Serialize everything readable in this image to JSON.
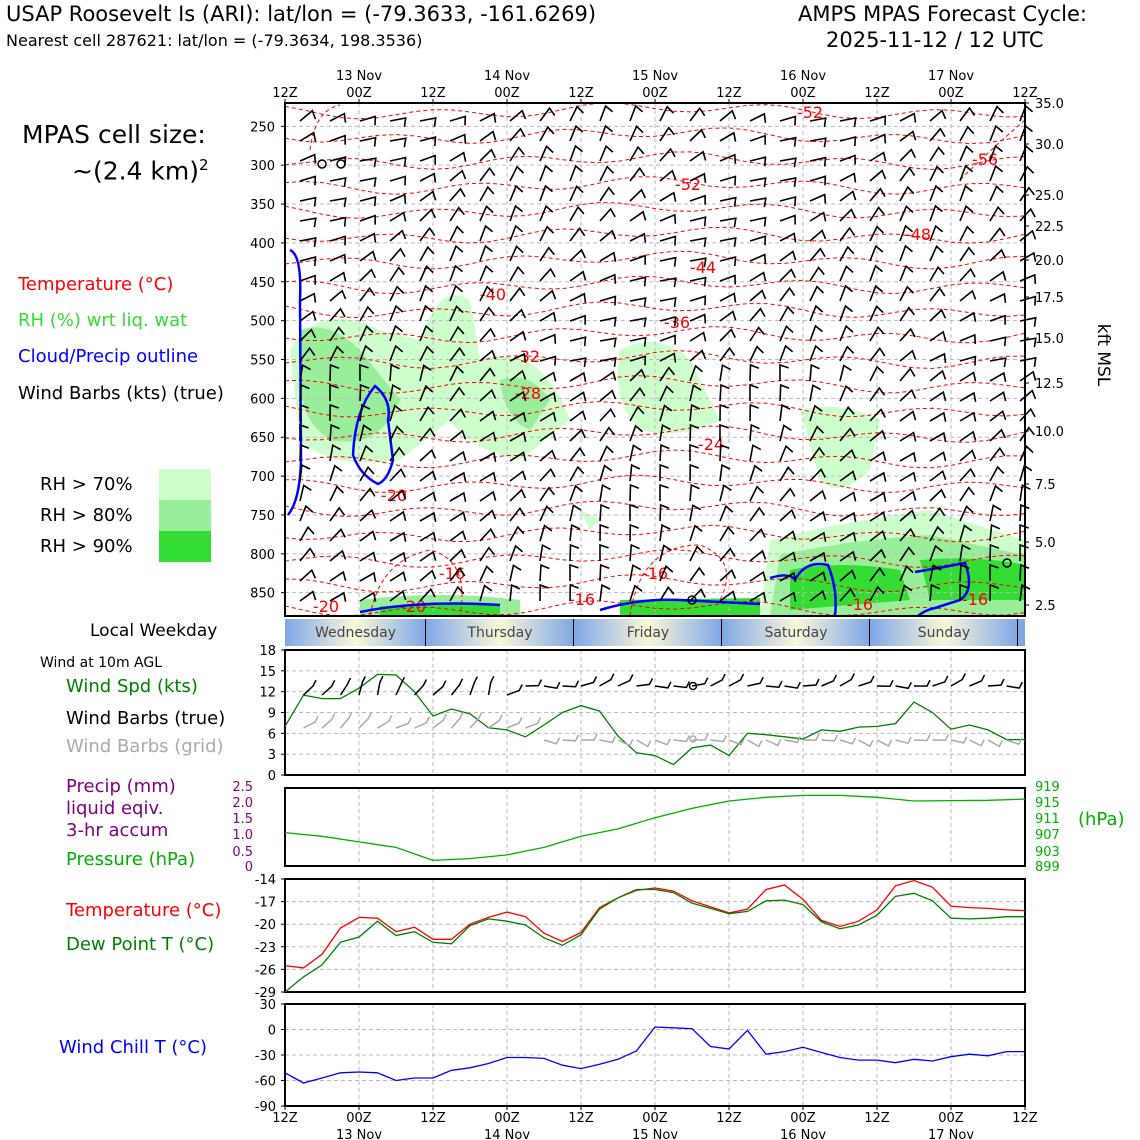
{
  "header": {
    "station": "USAP Roosevelt Is (ARI): lat/lon = (-79.3633, -161.6269)",
    "nearest": "Nearest cell 287621: lat/lon = (-79.3634, 198.3536)",
    "model": "AMPS MPAS Forecast Cycle:",
    "cycle": "2025-11-12 / 12 UTC"
  },
  "cell_size": {
    "line1": "MPAS cell size:",
    "line2": "~(2.4 km)",
    "sup": "2"
  },
  "legend_main": {
    "temp": "Temperature (°C)",
    "rh": "RH (%) wrt liq. wat",
    "cloud": "Cloud/Precip outline",
    "barbs": "Wind Barbs (kts) (true)",
    "rh70": "RH > 70%",
    "rh80": "RH > 80%",
    "rh90": "RH > 90%"
  },
  "colors": {
    "temp": "#ff0000",
    "rh_text": "#33dd33",
    "rh70": "#ccffcc",
    "rh80": "#99ee99",
    "rh90": "#33dd33",
    "cloud": "#0000ff",
    "wind": "#008000",
    "grey": "#aaaaaa",
    "precip": "#800080",
    "pressure": "#00b000",
    "dew": "#008000",
    "chill": "#0000ff"
  },
  "time_axis": {
    "hour_labels": [
      "12Z",
      "00Z",
      "12Z",
      "00Z",
      "12Z",
      "00Z",
      "12Z",
      "00Z",
      "12Z",
      "00Z",
      "12Z"
    ],
    "date_labels": [
      "13 Nov",
      "14 Nov",
      "15 Nov",
      "16 Nov",
      "17 Nov"
    ]
  },
  "weekday": {
    "label": "Local Weekday",
    "days": [
      "Wednesday",
      "Thursday",
      "Friday",
      "Saturday",
      "Sunday"
    ]
  },
  "chart_data": [
    {
      "type": "heatmap",
      "name": "time-height cross section",
      "y_left_label": "pressure (hPa)",
      "pressure_ticks": [
        250,
        300,
        350,
        400,
        450,
        500,
        550,
        600,
        650,
        700,
        750,
        800,
        850
      ],
      "height_ticks": [
        "35.0",
        "30.0",
        "25.0",
        "22.5",
        "20.0",
        "17.5",
        "15.0",
        "12.5",
        "10.0",
        "7.5",
        "5.0",
        "2.5"
      ],
      "ylabel_right": "kft MSL",
      "temp_contour_labels": [
        "-56",
        "-52",
        "-52",
        "-48",
        "-44",
        "-40",
        "-36",
        "-32",
        "-28",
        "-24",
        "-20",
        "-20",
        "-20",
        "-16",
        "-16",
        "-16",
        "-16",
        "-16"
      ],
      "series_note": "temperature contours, RH shading, cloud outline, wind barbs"
    },
    {
      "type": "line",
      "name": "10m wind",
      "title": "Wind at 10m AGL",
      "labels": {
        "spd": "Wind Spd (kts)",
        "true": "Wind Barbs (true)",
        "grid": "Wind Barbs (grid)"
      },
      "ylim": [
        0,
        18
      ],
      "yticks": [
        "0",
        "3",
        "6",
        "9",
        "12",
        "15",
        "18"
      ],
      "x_hours": [
        0,
        3,
        6,
        9,
        12,
        15,
        18,
        21,
        24,
        27,
        30,
        33,
        36,
        39,
        42,
        45,
        48,
        51,
        54,
        57,
        60,
        63,
        66,
        69,
        72,
        75,
        78,
        81,
        84,
        87,
        90,
        93,
        96,
        99,
        102,
        105,
        108,
        111,
        114,
        117,
        120
      ],
      "values": [
        7,
        11.5,
        11,
        11,
        12.5,
        14.5,
        14.4,
        12,
        8.5,
        9.5,
        8.8,
        6.8,
        6.5,
        5.5,
        7.2,
        9,
        10,
        9.2,
        5.6,
        3.2,
        2.8,
        1.5,
        3.9,
        4.3,
        2.8,
        6,
        5.8,
        5.5,
        5.2,
        6.5,
        6.3,
        6.9,
        7,
        7.4,
        10.5,
        9,
        6.6,
        7.2,
        6.5,
        5.1,
        5.1
      ]
    },
    {
      "type": "line",
      "name": "precip and pressure",
      "labels": {
        "precip": "Precip (mm)",
        "precip2": "liquid eqiv.",
        "precip3": "3-hr accum",
        "pressure": "Pressure (hPa)",
        "unit": "(hPa)"
      },
      "precip_ticks": [
        "0",
        "0.5",
        "1.0",
        "1.5",
        "2.0",
        "2.5"
      ],
      "pressure_ticks": [
        "899",
        "903",
        "907",
        "911",
        "915",
        "919"
      ],
      "ylim": [
        899,
        920
      ],
      "x_hours": [
        0,
        6,
        12,
        18,
        24,
        30,
        36,
        42,
        48,
        54,
        60,
        66,
        72,
        78,
        84,
        90,
        96,
        102,
        108,
        114,
        120
      ],
      "values": [
        908,
        907,
        905.5,
        904,
        900.5,
        901,
        902,
        904,
        907,
        909,
        912,
        914.5,
        916.5,
        917.5,
        918,
        918,
        917.5,
        916.5,
        916.6,
        916.7,
        917
      ]
    },
    {
      "type": "line",
      "name": "temperature and dew point",
      "labels": {
        "temp": "Temperature (°C)",
        "dew": "Dew Point T (°C)"
      },
      "ylim": [
        -29,
        -14
      ],
      "yticks": [
        "-29",
        "-26",
        "-23",
        "-20",
        "-17",
        "-14"
      ],
      "x_hours": [
        0,
        3,
        6,
        9,
        12,
        15,
        18,
        21,
        24,
        27,
        30,
        33,
        36,
        39,
        42,
        45,
        48,
        51,
        54,
        57,
        60,
        63,
        66,
        69,
        72,
        75,
        78,
        81,
        84,
        87,
        90,
        93,
        96,
        99,
        102,
        105,
        108,
        111,
        114,
        117,
        120
      ],
      "series": [
        {
          "name": "Temperature",
          "values": [
            -25.5,
            -25.8,
            -24,
            -20.5,
            -19.1,
            -19.2,
            -21,
            -20.4,
            -22,
            -22,
            -20,
            -19.1,
            -18.4,
            -19,
            -21.2,
            -22.3,
            -21.1,
            -17.8,
            -16.5,
            -15.5,
            -15.2,
            -15.6,
            -16.9,
            -17.7,
            -18.5,
            -18,
            -15.4,
            -14.8,
            -16.7,
            -19.5,
            -20.3,
            -19.6,
            -18.1,
            -14.9,
            -14.2,
            -15.1,
            -17.6,
            -17.8,
            -17.9,
            -18.1,
            -18.2
          ]
        },
        {
          "name": "Dew Point",
          "values": [
            -29,
            -27,
            -25.4,
            -22.4,
            -21.7,
            -19.6,
            -21.5,
            -21,
            -22.4,
            -22.6,
            -20.2,
            -19.3,
            -19.6,
            -20.1,
            -21.8,
            -22.8,
            -21.4,
            -18,
            -16.5,
            -15.4,
            -15.4,
            -15.8,
            -17.2,
            -17.9,
            -18.6,
            -18.3,
            -16.9,
            -16.8,
            -17.4,
            -19.7,
            -20.6,
            -20.1,
            -18.8,
            -16.3,
            -15.9,
            -16.9,
            -19.2,
            -19.3,
            -19.2,
            -19.0,
            -19.0
          ]
        }
      ]
    },
    {
      "type": "line",
      "name": "wind chill",
      "labels": {
        "chill": "Wind Chill T (°C)"
      },
      "ylim": [
        -90,
        30
      ],
      "yticks": [
        "-90",
        "-60",
        "-30",
        "0",
        "30"
      ],
      "x_hours": [
        0,
        3,
        6,
        9,
        12,
        15,
        18,
        21,
        24,
        27,
        30,
        33,
        36,
        39,
        42,
        45,
        48,
        51,
        54,
        57,
        60,
        63,
        66,
        69,
        72,
        75,
        78,
        81,
        84,
        87,
        90,
        93,
        96,
        99,
        102,
        105,
        108,
        111,
        114,
        117,
        120
      ],
      "values": [
        -51,
        -63,
        -57,
        -51,
        -50,
        -51,
        -60,
        -57,
        -57,
        -48,
        -45,
        -40,
        -33,
        -33,
        -34,
        -42,
        -46,
        -41,
        -35,
        -25,
        3,
        2,
        1,
        -20,
        -23,
        -1,
        -29,
        -26,
        -21,
        -27,
        -33,
        -36,
        -36,
        -39,
        -35,
        -37,
        -32,
        -29,
        -31,
        -26,
        -26
      ]
    }
  ]
}
